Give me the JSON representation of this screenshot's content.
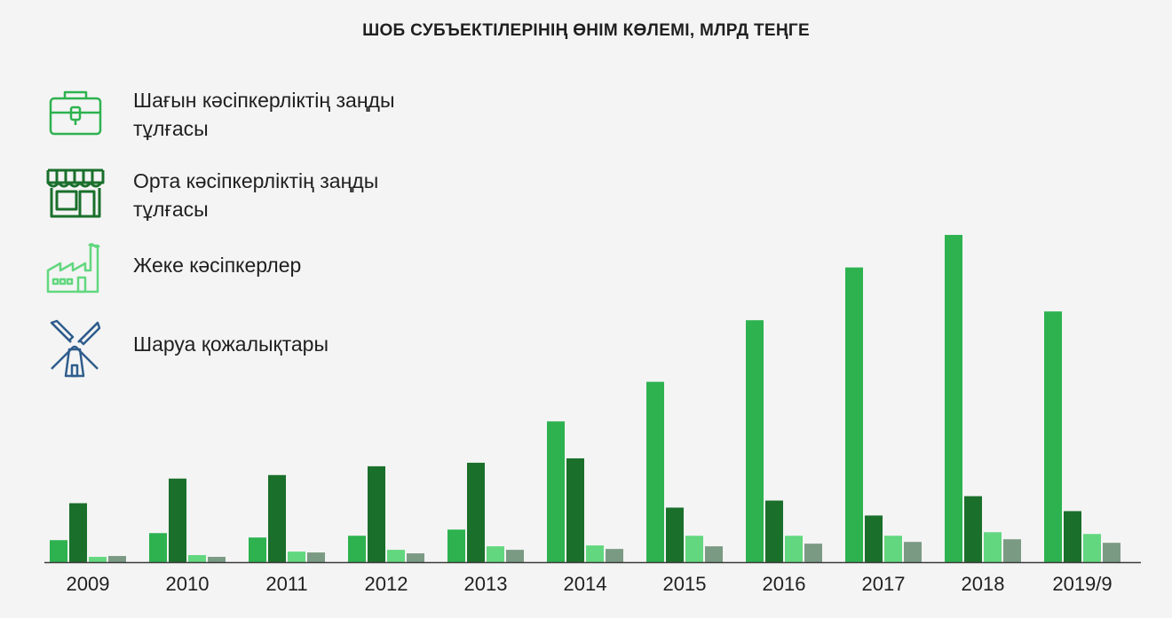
{
  "chart_data": {
    "type": "bar",
    "title": "ШОБ СУБЪЕКТІЛЕРІНІҢ ӨНІМ КӨЛЕМІ, МЛРД ТЕҢГЕ",
    "categories": [
      "2009",
      "2010",
      "2011",
      "2012",
      "2013",
      "2014",
      "2015",
      "2016",
      "2017",
      "2018",
      "2019/9"
    ],
    "series": [
      {
        "name": "Шағын кәсіпкерліктің заңды тұлғасы",
        "color": "#2db24f",
        "icon": "briefcase-icon",
        "values": [
          25,
          33,
          28,
          30,
          37,
          160,
          205,
          275,
          335,
          372,
          285
        ]
      },
      {
        "name": "Орта кәсіпкерліктің заңды тұлғасы",
        "color": "#1a6f2b",
        "icon": "storefront-icon",
        "values": [
          67,
          95,
          99,
          109,
          113,
          118,
          62,
          70,
          53,
          75,
          58
        ]
      },
      {
        "name": "Жеке кәсіпкерлер",
        "color": "#62d77f",
        "icon": "factory-icon",
        "values": [
          6,
          8,
          12,
          14,
          18,
          19,
          30,
          30,
          30,
          34,
          32
        ]
      },
      {
        "name": "Шаруа қожалықтары",
        "color": "#7b9a84",
        "icon": "windmill-icon",
        "values": [
          7,
          6,
          11,
          10,
          14,
          15,
          18,
          21,
          23,
          26,
          22
        ]
      }
    ],
    "ylim": [
      0,
      380
    ],
    "grid": false,
    "legend": "top-left"
  }
}
